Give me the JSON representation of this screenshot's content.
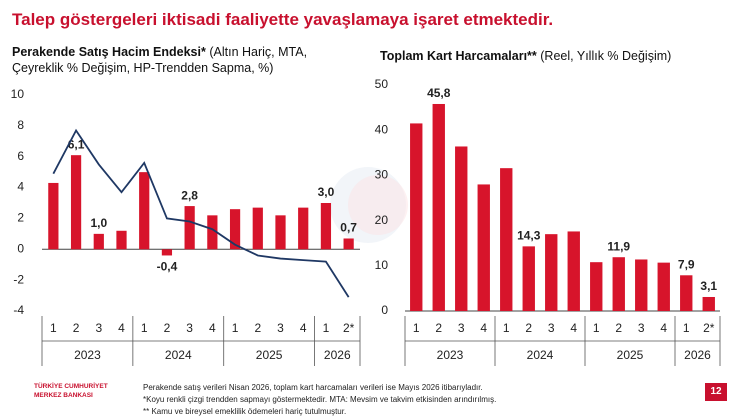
{
  "title": "Talep göstergeleri iktisadi faaliyette yavaşlamaya işaret etmektedir.",
  "footnotes": [
    "Perakende satış verileri Nisan 2026, toplam kart harcamaları verileri ise Mayıs 2026 itibarıyladır.",
    "*Koyu renkli çizgi trendden sapmayı göstermektedir. MTA: Mevsim ve takvim etkisinden arındırılmış.",
    "** Kamu ve bireysel emeklilik ödemeleri hariç tutulmuştur."
  ],
  "logo": [
    "TÜRKİYE CUMHURİYET",
    "MERKEZ BANKASI"
  ],
  "page_number": "12",
  "chart_data": [
    {
      "type": "bar",
      "title": "Perakende Satış Hacim Endeksi*",
      "subtitle": "(Altın Hariç, MTA, Çeyreklik % Değişim, HP-Trendden Sapma, %)",
      "groups": [
        {
          "label": "2023",
          "categories": [
            "1",
            "2",
            "3",
            "4"
          ]
        },
        {
          "label": "2024",
          "categories": [
            "1",
            "2",
            "3",
            "4"
          ]
        },
        {
          "label": "2025",
          "categories": [
            "1",
            "2",
            "3",
            "4"
          ]
        },
        {
          "label": "2026",
          "categories": [
            "1",
            "2*"
          ]
        }
      ],
      "series": [
        {
          "type": "bar",
          "color": "#d7142b",
          "values": [
            4.3,
            6.1,
            1.0,
            1.2,
            5.0,
            -0.4,
            2.8,
            2.2,
            2.6,
            2.7,
            2.2,
            2.7,
            3.0,
            0.7
          ],
          "value_labels": [
            null,
            "6,1",
            "1,0",
            null,
            null,
            "-0,4",
            "2,8",
            null,
            null,
            null,
            null,
            null,
            "3,0",
            "0,7"
          ]
        },
        {
          "type": "line",
          "color": "#1f3864",
          "values": [
            4.9,
            7.7,
            5.5,
            3.7,
            5.6,
            2.0,
            1.8,
            1.3,
            0.3,
            -0.4,
            -0.6,
            -0.7,
            -0.8,
            -3.1
          ]
        }
      ],
      "ylim": [
        -4,
        10
      ],
      "yticks": [
        -4,
        -2,
        0,
        2,
        4,
        6,
        8,
        10
      ]
    },
    {
      "type": "bar",
      "title": "Toplam Kart Harcamaları**",
      "subtitle": "(Reel, Yıllık % Değişim)",
      "groups": [
        {
          "label": "2023",
          "categories": [
            "1",
            "2",
            "3",
            "4"
          ]
        },
        {
          "label": "2024",
          "categories": [
            "1",
            "2",
            "3",
            "4"
          ]
        },
        {
          "label": "2025",
          "categories": [
            "1",
            "2",
            "3",
            "4"
          ]
        },
        {
          "label": "2026",
          "categories": [
            "1",
            "2*"
          ]
        }
      ],
      "series": [
        {
          "type": "bar",
          "color": "#d7142b",
          "values": [
            41.5,
            45.8,
            36.4,
            28.0,
            31.6,
            14.3,
            17.0,
            17.6,
            10.8,
            11.9,
            11.4,
            10.7,
            7.9,
            3.1
          ],
          "value_labels": [
            null,
            "45,8",
            null,
            null,
            null,
            "14,3",
            null,
            null,
            null,
            "11,9",
            null,
            null,
            "7,9",
            "3,1"
          ]
        }
      ],
      "ylim": [
        0,
        50
      ],
      "yticks": [
        0,
        10,
        20,
        30,
        40,
        50
      ]
    }
  ]
}
